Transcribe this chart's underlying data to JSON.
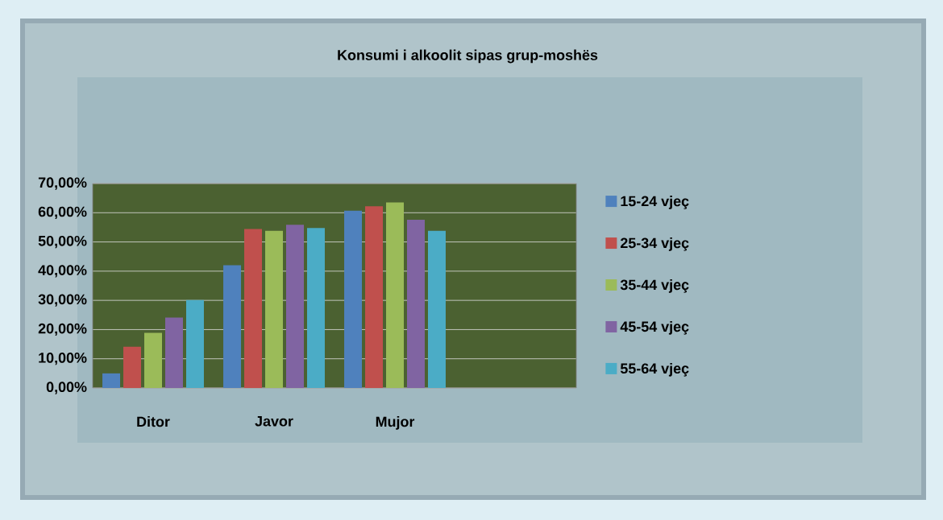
{
  "chart_data": {
    "type": "bar",
    "title": "Konsumi i alkoolit sipas grup-moshës",
    "categories": [
      "Ditor",
      "Javor",
      "Mujor",
      null
    ],
    "series": [
      {
        "name": "15-24 vjeç",
        "color": "#4f81bd",
        "values": [
          5.0,
          42.0,
          60.7,
          null
        ]
      },
      {
        "name": "25-34 vjeç",
        "color": "#c0504d",
        "values": [
          14.1,
          54.4,
          62.2,
          null
        ]
      },
      {
        "name": "35-44 vjeç",
        "color": "#9bbb59",
        "values": [
          18.9,
          53.8,
          63.5,
          null
        ]
      },
      {
        "name": "45-54 vjeç",
        "color": "#8064a2",
        "values": [
          24.1,
          55.9,
          57.6,
          null
        ]
      },
      {
        "name": "55-64 vjeç",
        "color": "#4bacc6",
        "values": [
          30.1,
          54.8,
          53.8,
          null
        ]
      }
    ],
    "ylim": [
      0,
      70
    ],
    "yticks": [
      {
        "value": 0,
        "label": "0,00%"
      },
      {
        "value": 10,
        "label": "10,00%"
      },
      {
        "value": 20,
        "label": "20,00%"
      },
      {
        "value": 30,
        "label": "30,00%"
      },
      {
        "value": 40,
        "label": "40,00%"
      },
      {
        "value": 50,
        "label": "50,00%"
      },
      {
        "value": 60,
        "label": "60,00%"
      },
      {
        "value": 70,
        "label": "70,00%"
      }
    ],
    "grid": "y",
    "legend": "right"
  }
}
